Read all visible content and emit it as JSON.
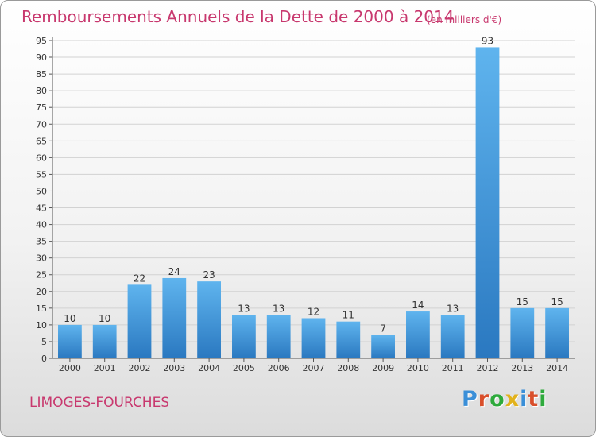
{
  "header": {
    "title": "Remboursements Annuels de la Dette de 2000 à 2014",
    "unit": "(en milliers d'€)"
  },
  "footer": {
    "commune": "LIMOGES-FOURCHES",
    "brand": "Proxiti",
    "brand_colors": [
      "#3a8fd8",
      "#d94f2b",
      "#2eaa3c",
      "#e2b21c",
      "#3a8fd8",
      "#d94f2b",
      "#2eaa3c"
    ]
  },
  "colors": {
    "title": "#c8386e",
    "bar_top": "#5fb4ee",
    "bar_bottom": "#2a78c0",
    "grid": "#d2d2d2",
    "axis_text": "#333333"
  },
  "chart_data": {
    "type": "bar",
    "title": "Remboursements Annuels de la Dette de 2000 à 2014",
    "xlabel": "",
    "ylabel": "",
    "categories": [
      "2000",
      "2001",
      "2002",
      "2003",
      "2004",
      "2005",
      "2006",
      "2007",
      "2008",
      "2009",
      "2010",
      "2011",
      "2012",
      "2013",
      "2014"
    ],
    "values": [
      10,
      10,
      22,
      24,
      23,
      13,
      13,
      12,
      11,
      7,
      14,
      13,
      93,
      15,
      15
    ],
    "data_labels": [
      "10",
      "10",
      "22",
      "24",
      "23",
      "13",
      "13",
      "12",
      "11",
      "7",
      "14",
      "13",
      "93",
      "15",
      "15"
    ],
    "ylim": [
      0,
      95
    ],
    "yticks": [
      "0",
      "5",
      "10",
      "15",
      "20",
      "25",
      "30",
      "35",
      "40",
      "45",
      "50",
      "55",
      "60",
      "65",
      "70",
      "75",
      "80",
      "85",
      "90",
      "95"
    ],
    "grid": true,
    "legend": "none"
  }
}
